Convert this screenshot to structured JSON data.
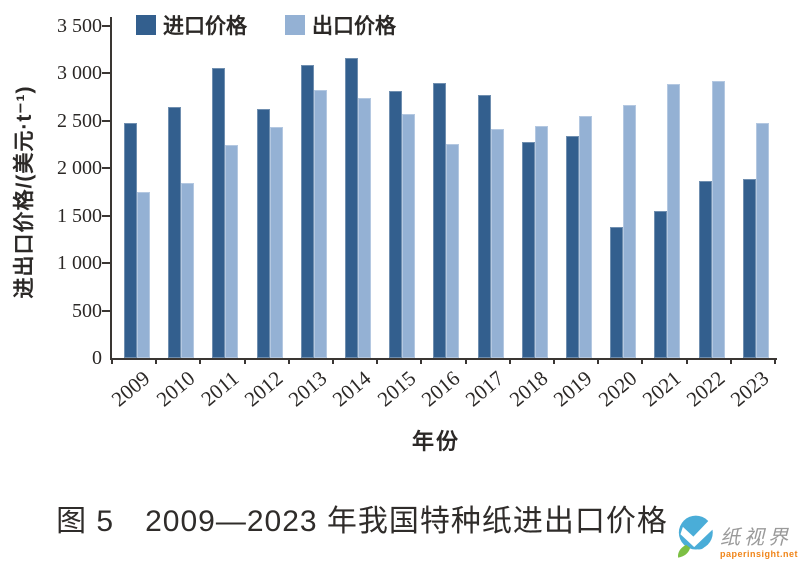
{
  "figure": {
    "caption": "图 5　2009—2023 年我国特种纸进出口价格"
  },
  "chart_data": {
    "type": "bar",
    "title": "",
    "categories": [
      "2009",
      "2010",
      "2011",
      "2012",
      "2013",
      "2014",
      "2015",
      "2016",
      "2017",
      "2018",
      "2019",
      "2020",
      "2021",
      "2022",
      "2023"
    ],
    "series": [
      {
        "name": "进口价格",
        "color": "#335f8e",
        "values": [
          2480,
          2650,
          3060,
          2620,
          3090,
          3160,
          2820,
          2900,
          2770,
          2280,
          2340,
          1380,
          1550,
          1870,
          1890
        ]
      },
      {
        "name": "出口价格",
        "color": "#94b1d4",
        "values": [
          1750,
          1850,
          2250,
          2430,
          2830,
          2740,
          2570,
          2260,
          2410,
          2450,
          2550,
          2670,
          2890,
          2920,
          2480
        ]
      }
    ],
    "xlabel": "年份",
    "ylabel": "进出口价格/(美元·t⁻¹)",
    "ylim": [
      0,
      3500
    ],
    "ytick_step": 500,
    "ytick_labels": [
      "0",
      "500",
      "1 000",
      "1 500",
      "2 000",
      "2 500",
      "3 000",
      "3 500"
    ],
    "legend_position": "top-left",
    "grid": false
  },
  "watermark": {
    "brand": "纸视界",
    "site": "paperinsight.net"
  },
  "colors": {
    "axis": "#3a3633",
    "import_bar": "#335f8e",
    "export_bar": "#94b1d4",
    "watermark_teal": "#4aadd8",
    "watermark_green": "#7cbf44",
    "watermark_orange": "#f08519"
  }
}
